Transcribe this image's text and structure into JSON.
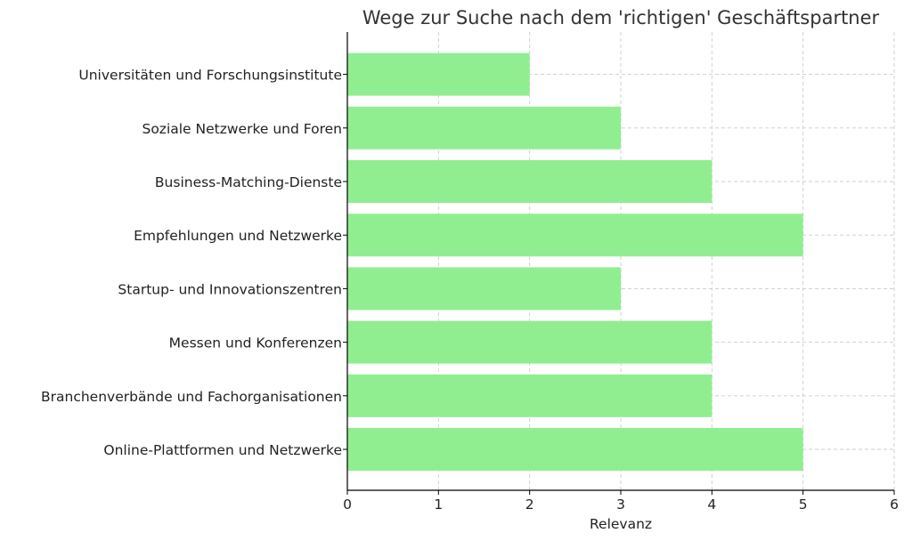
{
  "chart_data": {
    "type": "bar",
    "orientation": "horizontal",
    "title": "Wege zur Suche nach dem 'richtigen' Geschäftspartner",
    "xlabel": "Relevanz",
    "ylabel": "",
    "xlim": [
      0,
      6
    ],
    "xticks": [
      "0",
      "1",
      "2",
      "3",
      "4",
      "5",
      "6"
    ],
    "grid": true,
    "bar_color": "#90ee90",
    "categories": [
      "Online-Plattformen und Netzwerke",
      "Branchenverbände und Fachorganisationen",
      "Messen und Konferenzen",
      "Startup- und Innovationszentren",
      "Empfehlungen und Netzwerke",
      "Business-Matching-Dienste",
      "Soziale Netzwerke und Foren",
      "Universitäten und Forschungsinstitute"
    ],
    "values": [
      5,
      4,
      4,
      3,
      5,
      4,
      3,
      2
    ]
  }
}
